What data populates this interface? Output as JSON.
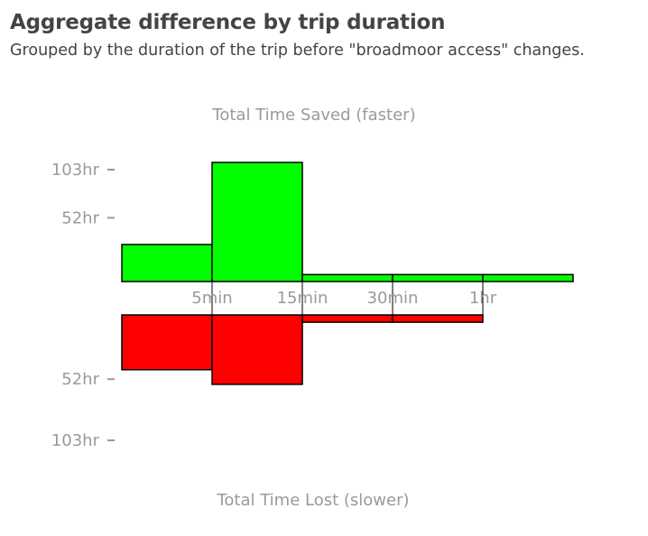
{
  "header": {
    "title": "Aggregate difference by trip duration",
    "subtitle": "Grouped by the duration of the trip before \"broadmoor access\" changes."
  },
  "chart_data": {
    "type": "bar",
    "x_tick_labels": [
      "5min",
      "15min",
      "30min",
      "1hr"
    ],
    "y_tick_labels": [
      "103hr",
      "52hr",
      "52hr",
      "103hr"
    ],
    "top_axis_label": "Total Time Saved (faster)",
    "bottom_axis_label": "Total Time Lost (slower)",
    "bins": [
      "0-5min",
      "5min-15min",
      "15min-30min",
      "30min-1hr",
      "1hr+"
    ],
    "series": [
      {
        "name": "Total Time Saved (faster)",
        "color": "#00ff00",
        "unit": "hr",
        "values": [
          32,
          103,
          6,
          6,
          6
        ]
      },
      {
        "name": "Total Time Lost (slower)",
        "color": "#ff0000",
        "unit": "hr",
        "values": [
          45,
          57,
          6,
          6,
          null
        ]
      }
    ],
    "ylim": [
      0,
      103
    ]
  }
}
